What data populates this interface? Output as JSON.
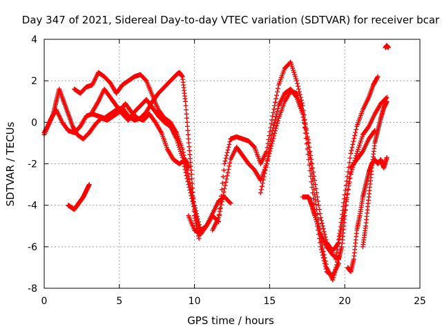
{
  "chart_data": {
    "type": "scatter",
    "title": "Day 347 of 2021, Sidereal Day-to-day VTEC variation (SDTVAR) for receiver bcar",
    "xlabel": "GPS time / hours",
    "ylabel": "SDTVAR / TECUs",
    "xlim": [
      0,
      25
    ],
    "ylim": [
      -8,
      4
    ],
    "xticks": [
      0,
      5,
      10,
      15,
      20,
      25
    ],
    "yticks": [
      -8,
      -6,
      -4,
      -2,
      0,
      2,
      4
    ],
    "grid": true,
    "marker": "+",
    "color": "#ff0000",
    "series": [
      {
        "name": "track-1",
        "x": [
          0.0,
          0.4,
          0.8,
          1.2,
          1.6,
          2.0,
          2.4,
          2.8,
          3.2,
          3.6,
          4.0,
          4.4,
          4.8,
          5.2,
          5.6,
          6.0,
          6.4,
          6.8,
          7.2,
          7.6,
          8.0,
          8.4,
          8.8,
          9.0,
          9.2,
          9.4,
          9.6,
          9.8,
          10.0,
          10.3
        ],
        "y": [
          -0.6,
          0.1,
          0.6,
          0.0,
          -0.4,
          -0.5,
          -0.2,
          0.3,
          0.4,
          0.3,
          0.2,
          0.4,
          0.6,
          0.7,
          0.3,
          0.1,
          0.2,
          0.5,
          1.0,
          1.4,
          1.7,
          2.0,
          2.3,
          2.4,
          2.2,
          1.0,
          -0.8,
          -2.5,
          -4.5,
          -5.6
        ]
      },
      {
        "name": "track-2",
        "x": [
          0.0,
          0.3,
          0.6,
          0.8,
          1.0,
          1.3,
          1.6,
          1.9,
          2.2,
          2.6,
          3.0,
          3.4,
          3.8,
          4.2,
          4.6,
          5.0,
          5.4,
          5.8,
          6.2,
          6.6,
          7.0,
          7.4,
          7.8,
          8.2,
          8.6,
          9.0,
          9.4,
          9.6
        ],
        "y": [
          -0.5,
          -0.1,
          0.4,
          1.0,
          1.6,
          1.0,
          0.4,
          -0.2,
          -0.6,
          -0.8,
          -0.5,
          -0.1,
          0.2,
          0.1,
          0.3,
          0.5,
          0.9,
          0.5,
          0.2,
          0.1,
          0.4,
          0.0,
          -0.5,
          -1.3,
          -1.8,
          -2.0,
          -1.8,
          -2.2
        ]
      },
      {
        "name": "track-3",
        "x": [
          2.0,
          2.4,
          2.8,
          3.2,
          3.6,
          4.0,
          4.4,
          4.8,
          5.2,
          5.6,
          6.0,
          6.4,
          6.8,
          7.2,
          7.6,
          8.0,
          8.4,
          8.8,
          9.2,
          9.6,
          10.0,
          10.4,
          10.8,
          11.2,
          11.6,
          12.0,
          12.4
        ],
        "y": [
          1.6,
          1.4,
          1.7,
          1.8,
          2.4,
          2.2,
          1.9,
          1.4,
          1.8,
          2.0,
          2.2,
          2.3,
          2.0,
          1.3,
          0.6,
          0.2,
          0.0,
          -0.5,
          -1.3,
          -2.6,
          -4.0,
          -5.2,
          -5.0,
          -4.4,
          -3.8,
          -3.6,
          -3.9
        ]
      },
      {
        "name": "track-4",
        "x": [
          3.2,
          3.6,
          4.0,
          4.4,
          4.8,
          5.2,
          5.6,
          6.0,
          6.4,
          6.8,
          7.2,
          7.6,
          8.0,
          8.4,
          8.8,
          9.2,
          9.6,
          10.0,
          10.4
        ],
        "y": [
          0.5,
          1.0,
          1.6,
          1.2,
          0.8,
          0.4,
          0.1,
          0.5,
          0.8,
          1.1,
          0.7,
          0.3,
          0.0,
          -0.2,
          -0.8,
          -1.7,
          -3.0,
          -4.2,
          -5.4
        ]
      },
      {
        "name": "track-5",
        "x": [
          1.6,
          1.8,
          2.0,
          2.2,
          2.4,
          2.6,
          2.8,
          3.0
        ],
        "y": [
          -4.0,
          -4.1,
          -4.2,
          -4.0,
          -3.8,
          -3.6,
          -3.3,
          -3.0
        ]
      },
      {
        "name": "track-6",
        "x": [
          9.6,
          10.0,
          10.4,
          10.8,
          11.2,
          11.6,
          12.0,
          12.4,
          12.8,
          13.2,
          13.6,
          14.0,
          14.4,
          14.8,
          15.2,
          15.6,
          16.0,
          16.4,
          16.8,
          17.2,
          17.6,
          18.0,
          18.4,
          18.8,
          19.2,
          19.6
        ],
        "y": [
          -4.5,
          -5.2,
          -5.4,
          -5.0,
          -4.5,
          -4.8,
          -2.0,
          -0.8,
          -0.7,
          -0.8,
          -0.9,
          -1.2,
          -2.0,
          -1.4,
          0.3,
          1.8,
          2.6,
          2.9,
          2.0,
          0.8,
          -1.2,
          -3.5,
          -5.6,
          -7.0,
          -7.6,
          -6.5
        ]
      },
      {
        "name": "track-7",
        "x": [
          11.2,
          11.6,
          12.0,
          12.4,
          12.8,
          13.2,
          13.6,
          14.0,
          14.4,
          14.8,
          15.2,
          15.6,
          16.0,
          16.4,
          16.8,
          17.2,
          17.6,
          18.0,
          18.4,
          18.8,
          19.2,
          19.6
        ],
        "y": [
          -5.2,
          -4.6,
          -3.2,
          -1.8,
          -1.2,
          -1.6,
          -2.0,
          -2.3,
          -2.8,
          -2.0,
          -0.9,
          0.2,
          1.0,
          1.5,
          1.4,
          0.5,
          -1.8,
          -4.2,
          -6.0,
          -7.2,
          -7.4,
          -6.8
        ]
      },
      {
        "name": "track-8",
        "x": [
          14.4,
          14.8,
          15.2,
          15.6,
          16.0,
          16.4,
          16.8,
          17.2,
          17.6,
          18.0,
          18.4,
          18.8,
          19.2,
          19.6,
          20.0,
          20.4,
          20.8,
          21.2,
          21.6,
          22.0,
          22.4,
          22.8
        ],
        "y": [
          -3.4,
          -2.0,
          -0.4,
          0.8,
          1.4,
          1.6,
          1.2,
          0.4,
          -1.0,
          -2.8,
          -4.6,
          -5.8,
          -6.2,
          -5.8,
          -4.2,
          -2.5,
          -1.5,
          -0.6,
          -0.2,
          0.4,
          0.9,
          1.2
        ]
      },
      {
        "name": "track-9",
        "x": [
          17.2,
          17.6,
          17.8,
          18.0,
          18.4,
          18.8,
          19.2,
          19.6,
          19.8,
          20.0,
          20.4,
          20.8,
          21.2,
          21.6,
          22.0
        ],
        "y": [
          -3.6,
          -3.6,
          -4.0,
          -4.5,
          -5.4,
          -6.0,
          -6.4,
          -6.6,
          -6.0,
          -4.5,
          -2.2,
          -1.8,
          -1.4,
          -0.8,
          -0.4
        ]
      },
      {
        "name": "track-10",
        "x": [
          19.4,
          19.7,
          20.0,
          20.4,
          20.8,
          21.2,
          21.6,
          21.9,
          22.2
        ],
        "y": [
          -6.6,
          -5.2,
          -3.5,
          -1.5,
          -0.2,
          0.6,
          1.2,
          1.8,
          2.2
        ]
      },
      {
        "name": "track-11",
        "x": [
          20.2,
          20.4,
          20.6,
          20.8,
          21.0,
          21.2,
          21.4,
          21.6,
          21.8,
          22.0,
          22.2,
          22.4,
          22.6,
          22.8
        ],
        "y": [
          -7.0,
          -7.2,
          -6.6,
          -5.2,
          -4.5,
          -3.6,
          -3.0,
          -2.4,
          -2.0,
          -1.8,
          -2.0,
          -1.8,
          -2.2,
          -1.7
        ]
      },
      {
        "name": "track-12",
        "x": [
          21.2,
          21.4,
          21.6,
          21.8,
          22.0,
          22.2,
          22.4,
          22.6,
          22.8
        ],
        "y": [
          -6.0,
          -5.0,
          -3.6,
          -2.2,
          -1.0,
          -0.4,
          0.2,
          0.7,
          1.0
        ]
      },
      {
        "name": "track-13",
        "x": [
          22.7,
          22.8,
          22.9
        ],
        "y": [
          3.6,
          3.7,
          3.6
        ]
      }
    ]
  }
}
